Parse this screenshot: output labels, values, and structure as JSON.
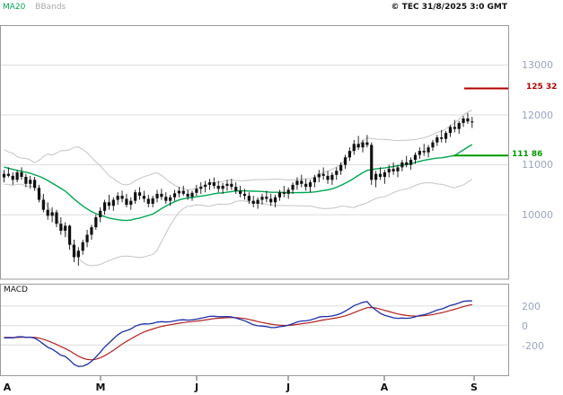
{
  "header": {
    "legend_ma20": "MA20",
    "legend_bbands": "BBands",
    "copyright": "© TEC 31/8/2025 3:0 GMT"
  },
  "main_chart": {
    "y_ticks": [
      13000,
      12000,
      11000,
      10000
    ],
    "levels": [
      {
        "label": "125 32",
        "value": 12532,
        "color": "#b30000"
      },
      {
        "label": "111 86",
        "value": 11186,
        "color": "#009900"
      }
    ]
  },
  "macd_panel": {
    "label": "MACD",
    "y_ticks": [
      "200",
      "0",
      "-200"
    ]
  },
  "x_axis": {
    "month_labels": [
      "A",
      "M",
      "J",
      "J",
      "A",
      "S"
    ],
    "positions": [
      8,
      112,
      219,
      321,
      428,
      528
    ]
  },
  "colors": {
    "candle": "#111111",
    "ma20": "#00a651",
    "bbands": "#c4c4c4",
    "grid": "#dcdcdc",
    "frame": "#9a9a9a",
    "macd_line": "#1c2fa8",
    "macd_signal": "#b22222",
    "tick_label": "#9aa3c2",
    "level_red": "#b30000",
    "level_green": "#009900"
  },
  "chart_data": {
    "type": "candlestick",
    "indicators": [
      "MA20",
      "BBands",
      "MACD"
    ],
    "price_axis_ticks": [
      13000,
      12000,
      11000,
      10000
    ],
    "price_axis_range": [
      8700,
      13800
    ],
    "macd_axis_ticks": [
      200,
      0,
      -200
    ],
    "macd_axis_range": [
      -520,
      430
    ],
    "levels": [
      12532,
      11186
    ],
    "warmup_closes": [
      11350,
      11250,
      11150,
      11280,
      11120,
      10980,
      11080,
      11180,
      10920,
      10830,
      10960,
      11080,
      10870,
      10740,
      10860,
      10950,
      10780,
      10680,
      10820,
      10780
    ],
    "ohlc": [
      [
        10750,
        10900,
        10650,
        10820
      ],
      [
        10820,
        10950,
        10750,
        10780
      ],
      [
        10780,
        10850,
        10600,
        10700
      ],
      [
        10700,
        10900,
        10650,
        10850
      ],
      [
        10850,
        10950,
        10700,
        10760
      ],
      [
        10760,
        10820,
        10550,
        10620
      ],
      [
        10620,
        10780,
        10520,
        10700
      ],
      [
        10700,
        10760,
        10480,
        10540
      ],
      [
        10540,
        10600,
        10250,
        10300
      ],
      [
        10300,
        10420,
        10050,
        10100
      ],
      [
        10100,
        10250,
        9900,
        9980
      ],
      [
        9980,
        10150,
        9850,
        10050
      ],
      [
        10050,
        10100,
        9750,
        9820
      ],
      [
        9820,
        9950,
        9600,
        9680
      ],
      [
        9680,
        9850,
        9550,
        9780
      ],
      [
        9780,
        9800,
        9300,
        9400
      ],
      [
        9400,
        9500,
        9050,
        9150
      ],
      [
        9150,
        9350,
        8980,
        9280
      ],
      [
        9280,
        9500,
        9200,
        9450
      ],
      [
        9450,
        9700,
        9350,
        9600
      ],
      [
        9600,
        9800,
        9500,
        9750
      ],
      [
        9750,
        10000,
        9700,
        9950
      ],
      [
        9950,
        10150,
        9850,
        10080
      ],
      [
        10080,
        10300,
        10000,
        10250
      ],
      [
        10250,
        10400,
        10100,
        10180
      ],
      [
        10180,
        10350,
        10080,
        10300
      ],
      [
        10300,
        10450,
        10200,
        10380
      ],
      [
        10380,
        10480,
        10250,
        10320
      ],
      [
        10320,
        10420,
        10150,
        10200
      ],
      [
        10200,
        10350,
        10100,
        10280
      ],
      [
        10280,
        10500,
        10220,
        10450
      ],
      [
        10450,
        10550,
        10300,
        10380
      ],
      [
        10380,
        10480,
        10250,
        10320
      ],
      [
        10320,
        10400,
        10150,
        10220
      ],
      [
        10220,
        10380,
        10150,
        10330
      ],
      [
        10330,
        10500,
        10250,
        10420
      ],
      [
        10420,
        10520,
        10300,
        10360
      ],
      [
        10360,
        10450,
        10220,
        10280
      ],
      [
        10280,
        10400,
        10180,
        10350
      ],
      [
        10350,
        10500,
        10280,
        10430
      ],
      [
        10430,
        10560,
        10350,
        10480
      ],
      [
        10480,
        10580,
        10380,
        10420
      ],
      [
        10420,
        10500,
        10300,
        10360
      ],
      [
        10360,
        10480,
        10280,
        10440
      ],
      [
        10440,
        10600,
        10380,
        10520
      ],
      [
        10520,
        10650,
        10420,
        10560
      ],
      [
        10560,
        10680,
        10450,
        10600
      ],
      [
        10600,
        10720,
        10500,
        10650
      ],
      [
        10650,
        10750,
        10520,
        10580
      ],
      [
        10580,
        10680,
        10450,
        10520
      ],
      [
        10520,
        10640,
        10420,
        10580
      ],
      [
        10580,
        10700,
        10480,
        10620
      ],
      [
        10620,
        10720,
        10500,
        10560
      ],
      [
        10560,
        10650,
        10420,
        10480
      ],
      [
        10480,
        10580,
        10350,
        10420
      ],
      [
        10420,
        10520,
        10300,
        10380
      ],
      [
        10380,
        10450,
        10220,
        10280
      ],
      [
        10280,
        10380,
        10150,
        10220
      ],
      [
        10220,
        10350,
        10120,
        10300
      ],
      [
        10300,
        10420,
        10200,
        10360
      ],
      [
        10360,
        10480,
        10250,
        10320
      ],
      [
        10320,
        10420,
        10180,
        10250
      ],
      [
        10250,
        10400,
        10150,
        10350
      ],
      [
        10350,
        10500,
        10280,
        10450
      ],
      [
        10450,
        10580,
        10350,
        10420
      ],
      [
        10420,
        10550,
        10320,
        10500
      ],
      [
        10500,
        10650,
        10420,
        10600
      ],
      [
        10600,
        10750,
        10500,
        10680
      ],
      [
        10680,
        10800,
        10550,
        10620
      ],
      [
        10620,
        10720,
        10480,
        10560
      ],
      [
        10560,
        10700,
        10450,
        10650
      ],
      [
        10650,
        10800,
        10550,
        10750
      ],
      [
        10750,
        10900,
        10650,
        10820
      ],
      [
        10820,
        10950,
        10700,
        10780
      ],
      [
        10780,
        10880,
        10620,
        10700
      ],
      [
        10700,
        10850,
        10600,
        10800
      ],
      [
        10800,
        10950,
        10700,
        10880
      ],
      [
        10880,
        11050,
        10800,
        11000
      ],
      [
        11000,
        11200,
        10920,
        11150
      ],
      [
        11150,
        11350,
        11080,
        11280
      ],
      [
        11280,
        11500,
        11200,
        11420
      ],
      [
        11420,
        11580,
        11300,
        11350
      ],
      [
        11350,
        11500,
        11250,
        11450
      ],
      [
        11450,
        11600,
        11350,
        11400
      ],
      [
        11400,
        11450,
        10600,
        10700
      ],
      [
        10700,
        10880,
        10550,
        10820
      ],
      [
        10820,
        10950,
        10700,
        10760
      ],
      [
        10760,
        10900,
        10620,
        10850
      ],
      [
        10850,
        11000,
        10750,
        10920
      ],
      [
        10920,
        11050,
        10800,
        10870
      ],
      [
        10870,
        11000,
        10750,
        10950
      ],
      [
        10950,
        11100,
        10870,
        11050
      ],
      [
        11050,
        11180,
        10950,
        11000
      ],
      [
        11000,
        11150,
        10900,
        11100
      ],
      [
        11100,
        11250,
        11020,
        11200
      ],
      [
        11200,
        11350,
        11120,
        11280
      ],
      [
        11280,
        11420,
        11180,
        11250
      ],
      [
        11250,
        11400,
        11150,
        11350
      ],
      [
        11350,
        11500,
        11280,
        11450
      ],
      [
        11450,
        11600,
        11380,
        11550
      ],
      [
        11550,
        11700,
        11450,
        11520
      ],
      [
        11520,
        11680,
        11440,
        11640
      ],
      [
        11640,
        11800,
        11560,
        11760
      ],
      [
        11760,
        11900,
        11650,
        11720
      ],
      [
        11720,
        11880,
        11620,
        11840
      ],
      [
        11840,
        11980,
        11760,
        11930
      ],
      [
        11930,
        12040,
        11820,
        11870
      ],
      [
        11870,
        11960,
        11740,
        11850
      ]
    ]
  }
}
